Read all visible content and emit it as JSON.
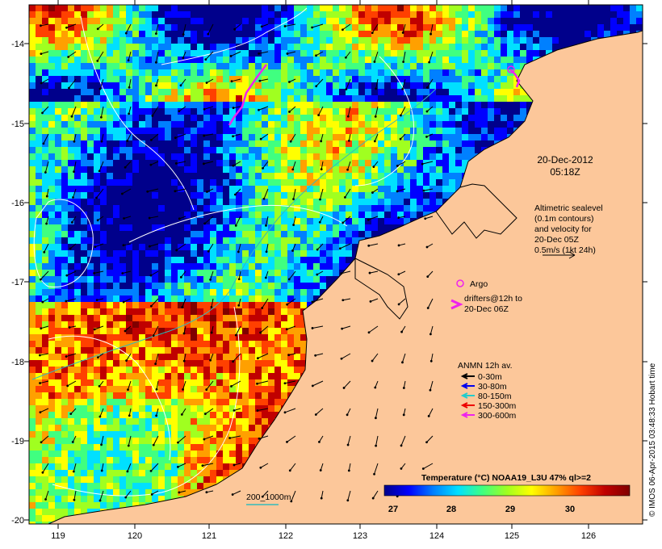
{
  "map": {
    "lon_ticks": [
      "119",
      "120",
      "121",
      "122",
      "123",
      "124",
      "125",
      "126"
    ],
    "lat_ticks": [
      "-14",
      "-15",
      "-16",
      "-17",
      "-18",
      "-19",
      "-20"
    ],
    "date_line1": "20-Dec-2012",
    "date_line2": "05:18Z",
    "altimetry_lines": [
      "Altimetric sealevel",
      "(0.1m contours)",
      "and velocity for",
      "20-Dec 05Z",
      "0.5m/s (1kt 24h)"
    ],
    "argo_label": "Argo",
    "drifters_lines": [
      "drifters@12h to",
      "20-Dec 06Z"
    ],
    "depth_contours_label": "200_1000m",
    "credit": "© IMOS 06-Apr-2015 03:48:33 Hobart time"
  },
  "mooring_legend": {
    "title": "ANMN 12h av.",
    "items": [
      {
        "label": "0-30m",
        "color": "#000000"
      },
      {
        "label": "30-80m",
        "color": "#0000ee"
      },
      {
        "label": "80-150m",
        "color": "#22cccc"
      },
      {
        "label": "150-300m",
        "color": "#ee0000"
      },
      {
        "label": "300-600m",
        "color": "#ee22ee"
      }
    ]
  },
  "colorbar": {
    "title": "Temperature (°C) NOAA19_L3U 47% ql>=2",
    "ticks": [
      "27",
      "28",
      "29",
      "30"
    ],
    "colors": [
      "#00008b",
      "#0000ff",
      "#0080ff",
      "#00e0ff",
      "#40ff80",
      "#a0ff20",
      "#ffff00",
      "#ffa000",
      "#ff4000",
      "#c00000",
      "#800000"
    ]
  },
  "colors": {
    "land": "#fcc79a",
    "argo": "#ee22ee",
    "contour": "#ffffff",
    "depth_contour": "#33bbbb"
  }
}
